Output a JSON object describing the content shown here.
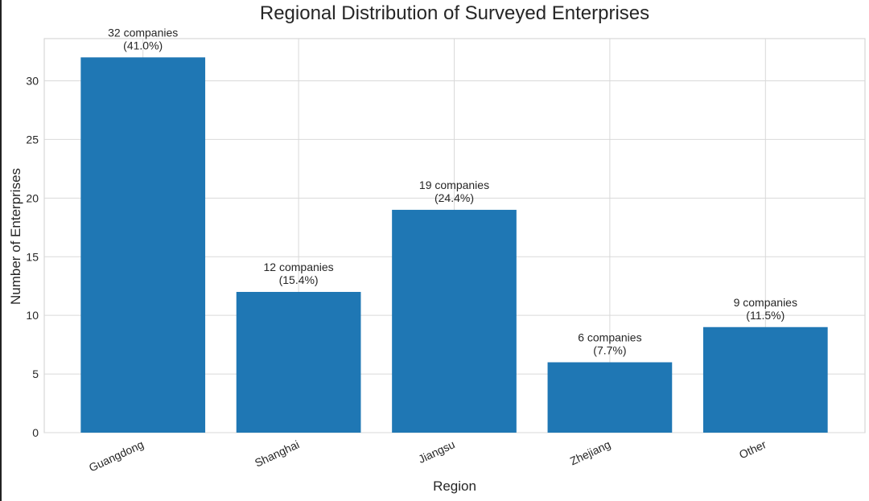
{
  "chart_data": {
    "type": "bar",
    "title": "Regional Distribution of Surveyed Enterprises",
    "xlabel": "Region",
    "ylabel": "Number of Enterprises",
    "categories": [
      "Guangdong",
      "Shanghai",
      "Jiangsu",
      "Zhejiang",
      "Other"
    ],
    "values": [
      32,
      12,
      19,
      6,
      9
    ],
    "data_labels": [
      [
        "32 companies",
        "(41.0%)"
      ],
      [
        "12 companies",
        "(15.4%)"
      ],
      [
        "19 companies",
        "(24.4%)"
      ],
      [
        "6 companies",
        "(7.7%)"
      ],
      [
        "9 companies",
        "(11.5%)"
      ]
    ],
    "yticks": [
      0,
      5,
      10,
      15,
      20,
      25,
      30
    ],
    "ylim": [
      0,
      33.6
    ],
    "grid": true,
    "colors": {
      "bar": "#1f77b4",
      "grid": "#d9d9d9",
      "axis": "#cfcfcf",
      "text": "#262626"
    }
  }
}
